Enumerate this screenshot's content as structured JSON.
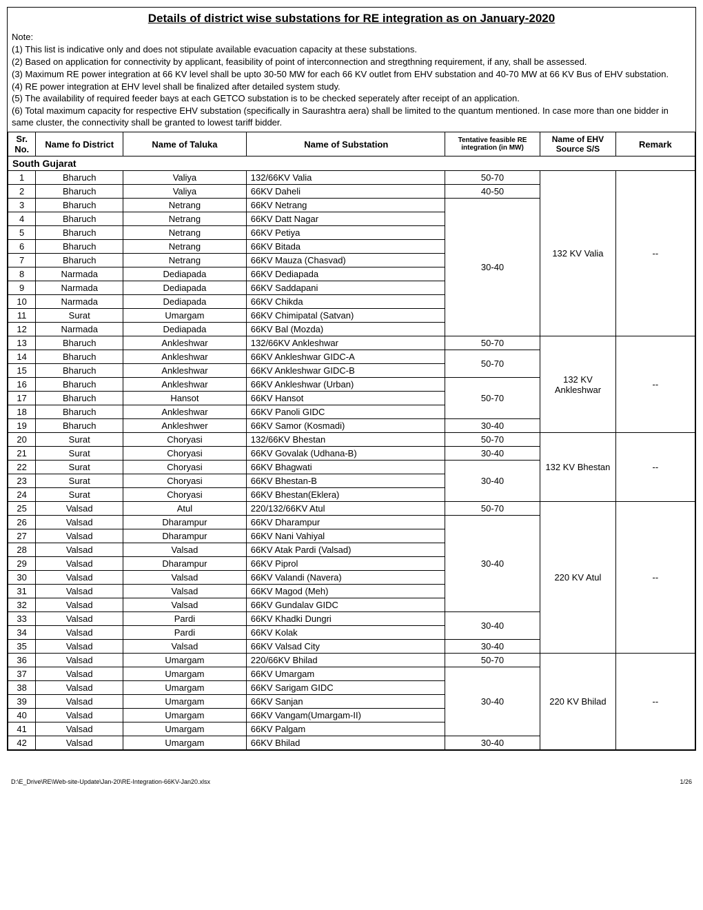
{
  "title": "Details of district wise substations for RE integration as on January-2020",
  "notes_label": "Note:",
  "notes": [
    "(1) This list is indicative only and does not stipulate available evacuation capacity at these substations.",
    "(2) Based on application for connectivity by applicant, feasibility of point of interconnection and stregthning requirement, if any, shall be assessed.",
    "(3) Maximum RE power integration at 66 KV level shall be upto 30-50 MW for each 66 KV outlet from EHV substation and 40-70 MW at 66 KV Bus of EHV substation.",
    "(4) RE power integration at EHV level shall be finalized after detailed system study.",
    "(5) The availability of required feeder bays at each GETCO substation is to be checked seperately after receipt of an application.",
    "(6) Total maximum capacity for respective EHV substation (specifically in Saurashtra aera) shall be limited to the quantum mentioned. In case more than one bidder in same cluster, the connectivity shall be granted to lowest tariff bidder."
  ],
  "headers": {
    "sr": "Sr. No.",
    "district": "Name fo District",
    "taluka": "Name of Taluka",
    "substation": "Name of Substation",
    "re": "Tentative feasible RE integration (in MW)",
    "source": "Name of EHV Source S/S",
    "remark": "Remark"
  },
  "section": "South Gujarat",
  "rows": [
    {
      "sr": "1",
      "district": "Bharuch",
      "taluka": "Valiya",
      "substation": "132/66KV Valia",
      "re": "50-70"
    },
    {
      "sr": "2",
      "district": "Bharuch",
      "taluka": "Valiya",
      "substation": "66KV Daheli",
      "re": "40-50"
    },
    {
      "sr": "3",
      "district": "Bharuch",
      "taluka": "Netrang",
      "substation": "66KV Netrang"
    },
    {
      "sr": "4",
      "district": "Bharuch",
      "taluka": "Netrang",
      "substation": "66KV Datt Nagar"
    },
    {
      "sr": "5",
      "district": "Bharuch",
      "taluka": "Netrang",
      "substation": "66KV Petiya"
    },
    {
      "sr": "6",
      "district": "Bharuch",
      "taluka": "Netrang",
      "substation": "66KV Bitada"
    },
    {
      "sr": "7",
      "district": "Bharuch",
      "taluka": "Netrang",
      "substation": "66KV Mauza (Chasvad)"
    },
    {
      "sr": "8",
      "district": "Narmada",
      "taluka": "Dediapada",
      "substation": "66KV Dediapada"
    },
    {
      "sr": "9",
      "district": "Narmada",
      "taluka": "Dediapada",
      "substation": "66KV Saddapani"
    },
    {
      "sr": "10",
      "district": "Narmada",
      "taluka": "Dediapada",
      "substation": "66KV Chikda"
    },
    {
      "sr": "11",
      "district": "Surat",
      "taluka": "Umargam",
      "substation": "66KV Chimipatal (Satvan)"
    },
    {
      "sr": "12",
      "district": "Narmada",
      "taluka": "Dediapada",
      "substation": "66KV Bal (Mozda)"
    },
    {
      "sr": "13",
      "district": "Bharuch",
      "taluka": "Ankleshwar",
      "substation": "132/66KV Ankleshwar",
      "re": "50-70"
    },
    {
      "sr": "14",
      "district": "Bharuch",
      "taluka": "Ankleshwar",
      "substation": "66KV Ankleshwar GIDC-A"
    },
    {
      "sr": "15",
      "district": "Bharuch",
      "taluka": "Ankleshwar",
      "substation": "66KV Ankleshwar GIDC-B"
    },
    {
      "sr": "16",
      "district": "Bharuch",
      "taluka": "Ankleshwar",
      "substation": "66KV Ankleshwar (Urban)"
    },
    {
      "sr": "17",
      "district": "Bharuch",
      "taluka": "Hansot",
      "substation": "66KV Hansot"
    },
    {
      "sr": "18",
      "district": "Bharuch",
      "taluka": "Ankleshwar",
      "substation": "66KV Panoli GIDC"
    },
    {
      "sr": "19",
      "district": "Bharuch",
      "taluka": "Ankleshwer",
      "substation": "66KV Samor (Kosmadi)",
      "re": "30-40"
    },
    {
      "sr": "20",
      "district": "Surat",
      "taluka": "Choryasi",
      "substation": "132/66KV Bhestan",
      "re": "50-70"
    },
    {
      "sr": "21",
      "district": "Surat",
      "taluka": "Choryasi",
      "substation": "66KV Govalak (Udhana-B)",
      "re": "30-40"
    },
    {
      "sr": "22",
      "district": "Surat",
      "taluka": "Choryasi",
      "substation": "66KV Bhagwati"
    },
    {
      "sr": "23",
      "district": "Surat",
      "taluka": "Choryasi",
      "substation": "66KV Bhestan-B"
    },
    {
      "sr": "24",
      "district": "Surat",
      "taluka": "Choryasi",
      "substation": "66KV Bhestan(Eklera)"
    },
    {
      "sr": "25",
      "district": "Valsad",
      "taluka": "Atul",
      "substation": "220/132/66KV Atul",
      "re": "50-70"
    },
    {
      "sr": "26",
      "district": "Valsad",
      "taluka": "Dharampur",
      "substation": "66KV Dharampur"
    },
    {
      "sr": "27",
      "district": "Valsad",
      "taluka": "Dharampur",
      "substation": "66KV Nani Vahiyal"
    },
    {
      "sr": "28",
      "district": "Valsad",
      "taluka": "Valsad",
      "substation": "66KV Atak Pardi (Valsad)"
    },
    {
      "sr": "29",
      "district": "Valsad",
      "taluka": "Dharampur",
      "substation": "66KV Piprol"
    },
    {
      "sr": "30",
      "district": "Valsad",
      "taluka": "Valsad",
      "substation": "66KV Valandi (Navera)"
    },
    {
      "sr": "31",
      "district": "Valsad",
      "taluka": "Valsad",
      "substation": "66KV Magod (Meh)"
    },
    {
      "sr": "32",
      "district": "Valsad",
      "taluka": "Valsad",
      "substation": "66KV Gundalav GIDC"
    },
    {
      "sr": "33",
      "district": "Valsad",
      "taluka": "Pardi",
      "substation": "66KV Khadki Dungri"
    },
    {
      "sr": "34",
      "district": "Valsad",
      "taluka": "Pardi",
      "substation": "66KV Kolak"
    },
    {
      "sr": "35",
      "district": "Valsad",
      "taluka": "Valsad",
      "substation": "66KV Valsad City",
      "re": "30-40"
    },
    {
      "sr": "36",
      "district": "Valsad",
      "taluka": "Umargam",
      "substation": "220/66KV Bhilad",
      "re": "50-70"
    },
    {
      "sr": "37",
      "district": "Valsad",
      "taluka": "Umargam",
      "substation": "66KV Umargam"
    },
    {
      "sr": "38",
      "district": "Valsad",
      "taluka": "Umargam",
      "substation": "66KV Sarigam GIDC"
    },
    {
      "sr": "39",
      "district": "Valsad",
      "taluka": "Umargam",
      "substation": "66KV Sanjan"
    },
    {
      "sr": "40",
      "district": "Valsad",
      "taluka": "Umargam",
      "substation": "66KV Vangam(Umargam-II)"
    },
    {
      "sr": "41",
      "district": "Valsad",
      "taluka": "Umargam",
      "substation": "66KV Palgam"
    },
    {
      "sr": "42",
      "district": "Valsad",
      "taluka": "Umargam",
      "substation": "66KV Bhilad",
      "re": "30-40"
    }
  ],
  "merged_re": [
    {
      "start": 3,
      "span": 10,
      "text": "30-40"
    },
    {
      "start": 14,
      "span": 2,
      "text": "50-70"
    },
    {
      "start": 16,
      "span": 3,
      "text": "50-70"
    },
    {
      "start": 22,
      "span": 3,
      "text": "30-40"
    },
    {
      "start": 26,
      "span": 7,
      "text": "30-40"
    },
    {
      "start": 33,
      "span": 2,
      "text": "30-40"
    },
    {
      "start": 37,
      "span": 5,
      "text": "30-40"
    }
  ],
  "sources": [
    {
      "start": 1,
      "span": 12,
      "text": "132 KV Valia",
      "remark": "--"
    },
    {
      "start": 13,
      "span": 7,
      "text": "132 KV Ankleshwar",
      "remark": "--"
    },
    {
      "start": 20,
      "span": 5,
      "text": "132 KV Bhestan",
      "remark": "--"
    },
    {
      "start": 25,
      "span": 11,
      "text": "220 KV Atul",
      "remark": "--"
    },
    {
      "start": 36,
      "span": 7,
      "text": "220 KV Bhilad",
      "remark": "--"
    }
  ],
  "footer_left": "D:\\E_Drive\\RE\\Web-site-Update\\Jan-20\\RE-Integration-66KV-Jan20.xlsx",
  "footer_right": "1/26"
}
